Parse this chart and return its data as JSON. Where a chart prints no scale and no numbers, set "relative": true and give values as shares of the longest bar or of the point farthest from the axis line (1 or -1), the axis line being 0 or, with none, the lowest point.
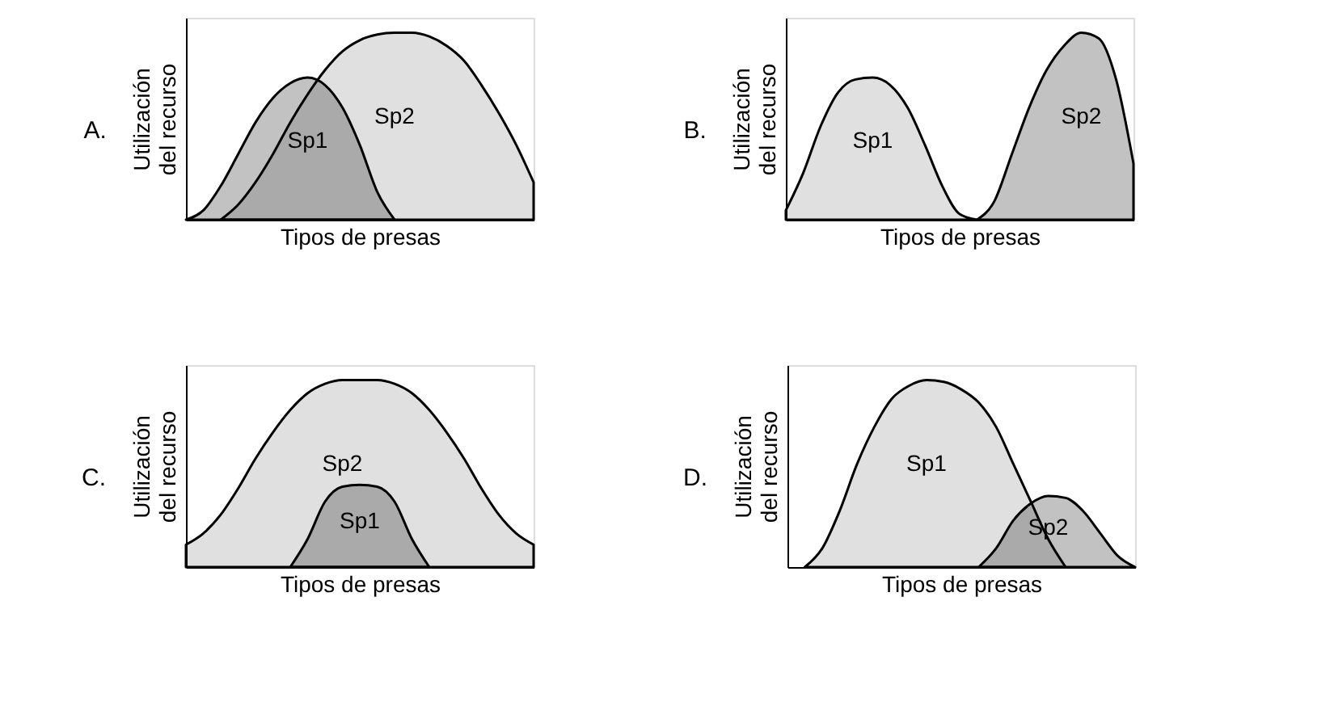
{
  "chart_data": [
    {
      "type": "area",
      "title": "A.",
      "xlabel": "Tipos de presas",
      "ylabel": "Utilización\ndel recurso",
      "relative": true,
      "legend": false,
      "grid": false,
      "tick_labels": false,
      "categories": [
        null,
        null,
        null,
        null,
        null,
        null,
        null,
        null,
        null,
        null,
        null,
        null,
        null,
        null,
        null,
        null,
        null,
        null,
        null,
        null,
        null
      ],
      "series": [
        {
          "name": "Sp1",
          "color": "#000000",
          "values": [
            0,
            0.05,
            0.18,
            0.35,
            0.52,
            0.65,
            0.73,
            0.76,
            0.72,
            0.6,
            0.4,
            0.15,
            0,
            null,
            null,
            null,
            null,
            null,
            null,
            null,
            null
          ]
        },
        {
          "name": "Sp2",
          "color": "#000000",
          "values": [
            null,
            null,
            0,
            0.08,
            0.2,
            0.35,
            0.52,
            0.67,
            0.8,
            0.9,
            0.96,
            0.99,
            1,
            1,
            0.98,
            0.93,
            0.85,
            0.72,
            0.57,
            0.4,
            0.2
          ]
        }
      ]
    },
    {
      "type": "area",
      "title": "B.",
      "xlabel": "Tipos de presas",
      "ylabel": "Utilización\ndel recurso",
      "relative": true,
      "legend": false,
      "grid": false,
      "tick_labels": false,
      "categories": [
        null,
        null,
        null,
        null,
        null,
        null,
        null,
        null,
        null,
        null,
        null,
        null,
        null,
        null,
        null,
        null,
        null,
        null,
        null,
        null,
        null
      ],
      "series": [
        {
          "name": "Sp1",
          "color": "#000000",
          "values": [
            0.05,
            0.25,
            0.5,
            0.68,
            0.75,
            0.76,
            0.72,
            0.6,
            0.4,
            0.18,
            0.03,
            0,
            null,
            null,
            null,
            null,
            null,
            null,
            null,
            null,
            null
          ]
        },
        {
          "name": "Sp2",
          "color": "#000000",
          "values": [
            null,
            null,
            null,
            null,
            null,
            null,
            null,
            null,
            null,
            null,
            null,
            0,
            0.1,
            0.35,
            0.6,
            0.8,
            0.93,
            1,
            0.97,
            0.75,
            0.3
          ]
        }
      ]
    },
    {
      "type": "area",
      "title": "C.",
      "xlabel": "Tipos de presas",
      "ylabel": "Utilización\ndel recurso",
      "relative": true,
      "legend": false,
      "grid": false,
      "tick_labels": false,
      "categories": [
        null,
        null,
        null,
        null,
        null,
        null,
        null,
        null,
        null,
        null,
        null,
        null,
        null,
        null,
        null,
        null,
        null,
        null,
        null,
        null,
        null
      ],
      "series": [
        {
          "name": "Sp1",
          "color": "#000000",
          "values": [
            null,
            null,
            null,
            null,
            null,
            null,
            0,
            0.15,
            0.35,
            0.43,
            0.44,
            0.43,
            0.35,
            0.15,
            0,
            null,
            null,
            null,
            null,
            null,
            null
          ]
        },
        {
          "name": "Sp2",
          "color": "#000000",
          "values": [
            0.12,
            0.18,
            0.28,
            0.42,
            0.58,
            0.72,
            0.84,
            0.93,
            0.98,
            1,
            1,
            1,
            0.98,
            0.93,
            0.84,
            0.72,
            0.58,
            0.42,
            0.28,
            0.18,
            0.12
          ]
        }
      ]
    },
    {
      "type": "area",
      "title": "D.",
      "xlabel": "Tipos de presas",
      "ylabel": "Utilización\ndel recurso",
      "relative": true,
      "legend": false,
      "grid": false,
      "tick_labels": false,
      "categories": [
        null,
        null,
        null,
        null,
        null,
        null,
        null,
        null,
        null,
        null,
        null,
        null,
        null,
        null,
        null,
        null,
        null,
        null,
        null,
        null,
        null
      ],
      "series": [
        {
          "name": "Sp1",
          "color": "#000000",
          "values": [
            null,
            0,
            0.1,
            0.3,
            0.55,
            0.75,
            0.9,
            0.97,
            1,
            0.99,
            0.95,
            0.88,
            0.75,
            0.55,
            0.35,
            0.15,
            0,
            null,
            null,
            null,
            null
          ]
        },
        {
          "name": "Sp2",
          "color": "#000000",
          "values": [
            null,
            null,
            null,
            null,
            null,
            null,
            null,
            null,
            null,
            null,
            null,
            0,
            0.1,
            0.25,
            0.34,
            0.38,
            0.37,
            0.3,
            0.18,
            0.06,
            0
          ]
        }
      ]
    }
  ]
}
